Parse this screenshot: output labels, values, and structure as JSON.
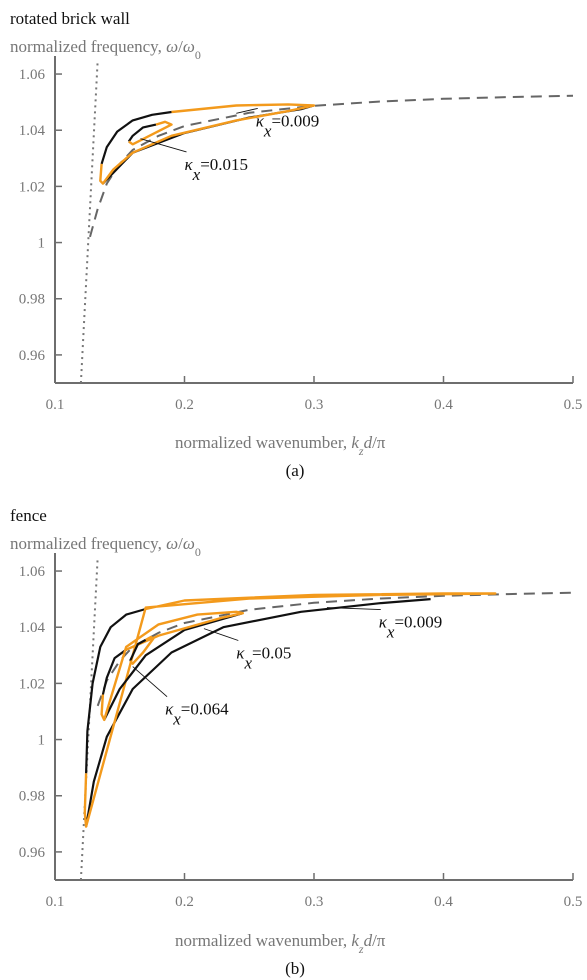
{
  "colors": {
    "branch_black": "#111111",
    "branch_orange": "#f39a1c",
    "reference": "#666666",
    "axis": "#6e6e6e"
  },
  "chart_data": [
    {
      "type": "line",
      "title": "rotated brick wall",
      "subtitle": "normalized frequency, ω/ω₀",
      "xlabel": "normalized wavenumber, k_z d/π",
      "caption": "(a)",
      "xlim": [
        0.1,
        0.5
      ],
      "ylim": [
        0.95,
        1.065
      ],
      "xticks": [
        "0.1",
        "0.2",
        "0.3",
        "0.4",
        "0.5"
      ],
      "yticks": [
        "0.96",
        "0.98",
        "1",
        "1.02",
        "1.04",
        "1.06"
      ],
      "light_line": [
        [
          0.12,
          0.95
        ],
        [
          0.133,
          1.065
        ]
      ],
      "dashed_curve": [
        [
          0.127,
          1.002
        ],
        [
          0.133,
          1.012
        ],
        [
          0.14,
          1.021
        ],
        [
          0.15,
          1.028
        ],
        [
          0.16,
          1.033
        ],
        [
          0.18,
          1.038
        ],
        [
          0.2,
          1.0415
        ],
        [
          0.25,
          1.0462
        ],
        [
          0.3,
          1.0487
        ],
        [
          0.35,
          1.0502
        ],
        [
          0.4,
          1.0512
        ],
        [
          0.45,
          1.0518
        ],
        [
          0.5,
          1.0523
        ]
      ],
      "loops": [
        {
          "label": "κx=0.009",
          "black": [
            [
              0.19,
              1.0465
            ],
            [
              0.175,
              1.0455
            ],
            [
              0.16,
              1.0435
            ],
            [
              0.148,
              1.0395
            ],
            [
              0.14,
              1.034
            ],
            [
              0.136,
              1.028
            ]
          ],
          "orange": [
            [
              0.136,
              1.028
            ],
            [
              0.135,
              1.022
            ],
            [
              0.137,
              1.021
            ],
            [
              0.145,
              1.026
            ],
            [
              0.16,
              1.032
            ],
            [
              0.19,
              1.038
            ],
            [
              0.24,
              1.0435
            ],
            [
              0.28,
              1.0468
            ],
            [
              0.3,
              1.0488
            ],
            [
              0.28,
              1.0492
            ],
            [
              0.24,
              1.0488
            ],
            [
              0.19,
              1.0465
            ]
          ],
          "black2": [
            [
              0.137,
              1.021
            ],
            [
              0.16,
              1.032
            ],
            [
              0.2,
              1.039
            ],
            [
              0.25,
              1.0445
            ],
            [
              0.29,
              1.0475
            ],
            [
              0.3,
              1.0488
            ]
          ]
        },
        {
          "label": "κx=0.015",
          "black": [
            [
              0.178,
              1.042
            ],
            [
              0.168,
              1.041
            ],
            [
              0.16,
              1.038
            ],
            [
              0.157,
              1.036
            ]
          ],
          "orange": [
            [
              0.157,
              1.036
            ],
            [
              0.16,
              1.035
            ],
            [
              0.175,
              1.0385
            ],
            [
              0.19,
              1.042
            ],
            [
              0.185,
              1.043
            ],
            [
              0.178,
              1.042
            ]
          ],
          "black2": []
        }
      ],
      "annotations": [
        {
          "text": "κx=0.009",
          "at": [
            0.255,
            1.0435
          ],
          "arrow_to": [
            0.24,
            1.046
          ]
        },
        {
          "text": "κx=0.015",
          "at": [
            0.2,
            1.028
          ],
          "arrow_to": [
            0.166,
            1.037
          ]
        }
      ]
    },
    {
      "type": "line",
      "title": "fence",
      "subtitle": "normalized frequency, ω/ω₀",
      "xlabel": "normalized wavenumber, k_z d/π",
      "caption": "(b)",
      "xlim": [
        0.1,
        0.5
      ],
      "ylim": [
        0.95,
        1.065
      ],
      "xticks": [
        "0.1",
        "0.2",
        "0.3",
        "0.4",
        "0.5"
      ],
      "yticks": [
        "0.96",
        "0.98",
        "1",
        "1.02",
        "1.04",
        "1.06"
      ],
      "light_line": [
        [
          0.12,
          0.95
        ],
        [
          0.133,
          1.065
        ]
      ],
      "dashed_curve": [
        [
          0.133,
          1.012
        ],
        [
          0.14,
          1.021
        ],
        [
          0.15,
          1.028
        ],
        [
          0.16,
          1.033
        ],
        [
          0.18,
          1.038
        ],
        [
          0.2,
          1.0415
        ],
        [
          0.25,
          1.0462
        ],
        [
          0.3,
          1.0487
        ],
        [
          0.35,
          1.0502
        ],
        [
          0.4,
          1.0512
        ],
        [
          0.45,
          1.0518
        ],
        [
          0.5,
          1.0523
        ]
      ],
      "loops": [
        {
          "label": "κx=0.009",
          "black": [
            [
              0.17,
              1.0465
            ],
            [
              0.155,
              1.0445
            ],
            [
              0.143,
              1.04
            ],
            [
              0.135,
              1.033
            ],
            [
              0.129,
              1.02
            ],
            [
              0.125,
              1.003
            ],
            [
              0.124,
              0.988
            ]
          ],
          "orange": [
            [
              0.124,
              0.988
            ],
            [
              0.123,
              0.974
            ],
            [
              0.124,
              0.969
            ],
            [
              0.17,
              1.047
            ],
            [
              0.25,
              1.0502
            ],
            [
              0.35,
              1.0515
            ],
            [
              0.44,
              1.052
            ],
            [
              0.4,
              1.052
            ],
            [
              0.3,
              1.0515
            ],
            [
              0.2,
              1.0495
            ],
            [
              0.17,
              1.0465
            ]
          ],
          "black2": [
            [
              0.124,
              0.969
            ],
            [
              0.13,
              0.985
            ],
            [
              0.14,
              1.001
            ],
            [
              0.16,
              1.018
            ],
            [
              0.19,
              1.031
            ],
            [
              0.23,
              1.04
            ],
            [
              0.29,
              1.0455
            ],
            [
              0.35,
              1.0485
            ],
            [
              0.39,
              1.05
            ]
          ]
        },
        {
          "label": "κx=0.05",
          "black": [
            [
              0.155,
              1.032
            ],
            [
              0.146,
              1.029
            ],
            [
              0.14,
              1.022
            ],
            [
              0.137,
              1.016
            ]
          ],
          "orange": [
            [
              0.137,
              1.016
            ],
            [
              0.136,
              1.009
            ],
            [
              0.138,
              1.007
            ],
            [
              0.155,
              1.033
            ],
            [
              0.18,
              1.041
            ],
            [
              0.21,
              1.0445
            ],
            [
              0.24,
              1.0455
            ],
            [
              0.245,
              1.045
            ],
            [
              0.23,
              1.0435
            ],
            [
              0.18,
              1.037
            ],
            [
              0.155,
              1.032
            ]
          ],
          "black2": [
            [
              0.138,
              1.007
            ],
            [
              0.15,
              1.018
            ],
            [
              0.17,
              1.03
            ],
            [
              0.2,
              1.039
            ],
            [
              0.245,
              1.045
            ]
          ]
        },
        {
          "label": "κx=0.064",
          "black": [
            [
              0.17,
              1.0355
            ],
            [
              0.164,
              1.034
            ],
            [
              0.16,
              1.03
            ],
            [
              0.158,
              1.028
            ]
          ],
          "orange": [
            [
              0.158,
              1.028
            ],
            [
              0.16,
              1.027
            ],
            [
              0.168,
              1.031
            ],
            [
              0.176,
              1.036
            ],
            [
              0.174,
              1.0365
            ],
            [
              0.17,
              1.0355
            ]
          ],
          "black2": []
        }
      ],
      "annotations": [
        {
          "text": "κx=0.009",
          "at": [
            0.35,
            1.042
          ],
          "arrow_to": [
            0.31,
            1.047
          ]
        },
        {
          "text": "κx=0.05",
          "at": [
            0.24,
            1.031
          ],
          "arrow_to": [
            0.215,
            1.0395
          ]
        },
        {
          "text": "κx=0.064",
          "at": [
            0.185,
            1.011
          ],
          "arrow_to": [
            0.16,
            1.026
          ]
        }
      ]
    }
  ]
}
